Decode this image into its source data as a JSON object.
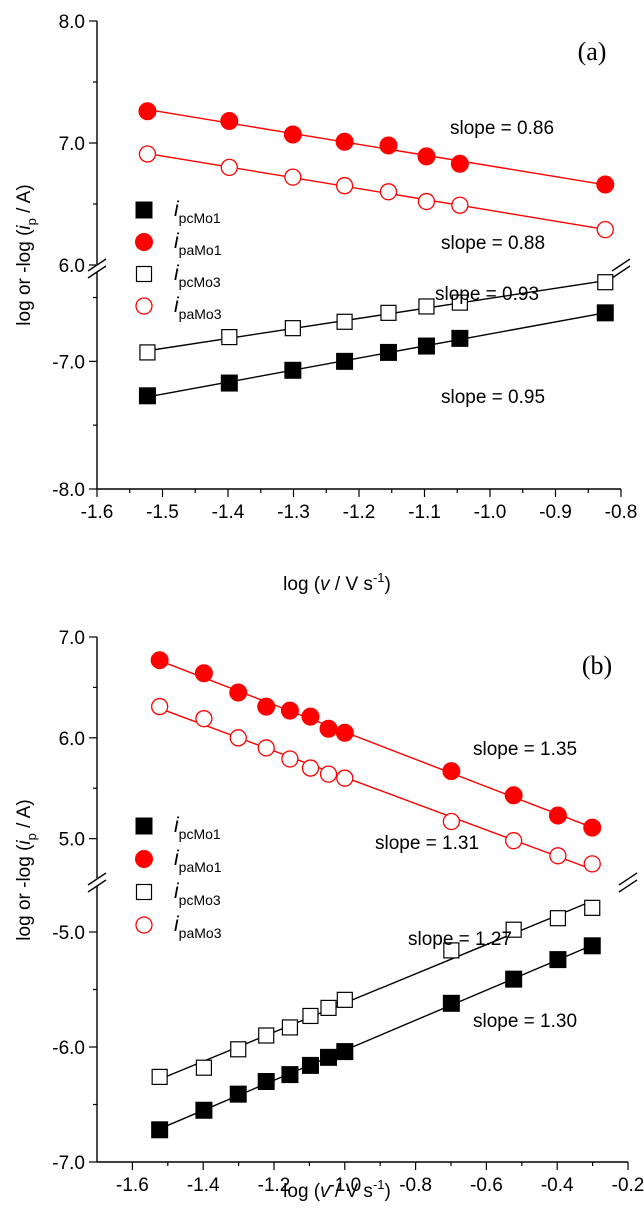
{
  "chart_data": [
    {
      "type": "scatter",
      "panel_label": "(a)",
      "xlabel": "log (v / V s-1)",
      "ylabel": "log or -log (ip / A)",
      "xlim": [
        -1.6,
        -0.8
      ],
      "x_ticks": [
        -1.6,
        -1.5,
        -1.4,
        -1.3,
        -1.2,
        -1.1,
        -1.0,
        -0.9,
        -0.8
      ],
      "x_tick_labels": [
        "-1.6",
        "-1.5",
        "-1.4",
        "-1.3",
        "-1.2",
        "-1.1",
        "-1.0",
        "-0.9",
        "-0.8"
      ],
      "y_segments": [
        {
          "range": [
            6.0,
            8.0
          ],
          "ticks": [
            6.0,
            7.0,
            8.0
          ],
          "tick_labels": [
            "6.0",
            "7.0",
            "8.0"
          ]
        },
        {
          "range": [
            -8.0,
            -6.3
          ],
          "ticks": [
            -8.0,
            -7.0
          ],
          "tick_labels": [
            "-8.0",
            "-7.0"
          ]
        }
      ],
      "x": [
        -1.523,
        -1.398,
        -1.301,
        -1.222,
        -1.155,
        -1.097,
        -1.046,
        -0.824
      ],
      "series": [
        {
          "name": "ipcMo1",
          "name_main": "i",
          "name_sub": "pcMo1",
          "marker": "square-filled",
          "color": "#000000",
          "segment": 1,
          "slope": 0.95,
          "slope_label": "slope = 0.95",
          "values": [
            -7.27,
            -7.17,
            -7.07,
            -7.0,
            -6.93,
            -6.88,
            -6.82,
            -6.62
          ]
        },
        {
          "name": "ipaMo1",
          "name_main": "i",
          "name_sub": "paMo1",
          "marker": "circle-filled",
          "color": "#ff0000",
          "segment": 0,
          "slope": 0.86,
          "slope_label": "slope = 0.86",
          "values": [
            7.26,
            7.18,
            7.07,
            7.01,
            6.98,
            6.89,
            6.83,
            6.66
          ]
        },
        {
          "name": "ipcMo3",
          "name_main": "i",
          "name_sub": "pcMo3",
          "marker": "square-open",
          "color": "#000000",
          "segment": 1,
          "slope": 0.93,
          "slope_label": "slope = 0.93",
          "values": [
            -6.93,
            -6.81,
            -6.74,
            -6.69,
            -6.62,
            -6.57,
            -6.54,
            -6.38
          ]
        },
        {
          "name": "ipaMo3",
          "name_main": "i",
          "name_sub": "paMo3",
          "marker": "circle-open",
          "color": "#ff0000",
          "segment": 0,
          "slope": 0.88,
          "slope_label": "slope = 0.88",
          "values": [
            6.91,
            6.8,
            6.72,
            6.65,
            6.6,
            6.52,
            6.49,
            6.29
          ]
        }
      ]
    },
    {
      "type": "scatter",
      "panel_label": "(b)",
      "xlabel": "log (v / V s-1)",
      "ylabel": "log or -log (ip / A)",
      "xlim": [
        -1.7,
        -0.2
      ],
      "x_ticks": [
        -1.6,
        -1.4,
        -1.2,
        -1.0,
        -0.8,
        -0.6,
        -0.4,
        -0.2
      ],
      "x_tick_labels": [
        "-1.6",
        "-1.4",
        "-1.2",
        "-1.0",
        "-0.8",
        "-0.6",
        "-0.4",
        "-0.2"
      ],
      "y_segments": [
        {
          "range": [
            4.6,
            7.0
          ],
          "ticks": [
            5.0,
            6.0,
            7.0
          ],
          "tick_labels": [
            "5.0",
            "6.0",
            "7.0"
          ]
        },
        {
          "range": [
            -7.0,
            -4.6
          ],
          "ticks": [
            -7.0,
            -6.0,
            -5.0
          ],
          "tick_labels": [
            "-7.0",
            "-6.0",
            "-5.0"
          ]
        }
      ],
      "x": [
        -1.523,
        -1.398,
        -1.301,
        -1.222,
        -1.155,
        -1.097,
        -1.046,
        -1.0,
        -0.699,
        -0.523,
        -0.398,
        -0.301
      ],
      "series": [
        {
          "name": "ipcMo1",
          "name_main": "i",
          "name_sub": "pcMo1",
          "marker": "square-filled",
          "color": "#000000",
          "segment": 1,
          "slope": 1.3,
          "slope_label": "slope = 1.30",
          "values": [
            -6.72,
            -6.55,
            -6.41,
            -6.3,
            -6.24,
            -6.16,
            -6.09,
            -6.04,
            -5.62,
            -5.41,
            -5.24,
            -5.12
          ]
        },
        {
          "name": "ipaMo1",
          "name_main": "i",
          "name_sub": "paMo1",
          "marker": "circle-filled",
          "color": "#ff0000",
          "segment": 0,
          "slope": 1.35,
          "slope_label": "slope = 1.35",
          "values": [
            6.77,
            6.64,
            6.45,
            6.31,
            6.27,
            6.21,
            6.09,
            6.05,
            5.67,
            5.43,
            5.23,
            5.11
          ]
        },
        {
          "name": "ipcMo3",
          "name_main": "i",
          "name_sub": "pcMo3",
          "marker": "square-open",
          "color": "#000000",
          "segment": 1,
          "slope": 1.27,
          "slope_label": "slope = 1.27",
          "values": [
            -6.26,
            -6.18,
            -6.02,
            -5.9,
            -5.83,
            -5.73,
            -5.66,
            -5.59,
            -5.16,
            -4.98,
            -4.88,
            -4.79
          ]
        },
        {
          "name": "ipaMo3",
          "name_main": "i",
          "name_sub": "paMo3",
          "marker": "circle-open",
          "color": "#ff0000",
          "segment": 0,
          "slope": 1.31,
          "slope_label": "slope = 1.31",
          "values": [
            6.31,
            6.19,
            6.0,
            5.9,
            5.79,
            5.7,
            5.64,
            5.6,
            5.17,
            4.98,
            4.83,
            4.75
          ]
        }
      ]
    }
  ]
}
